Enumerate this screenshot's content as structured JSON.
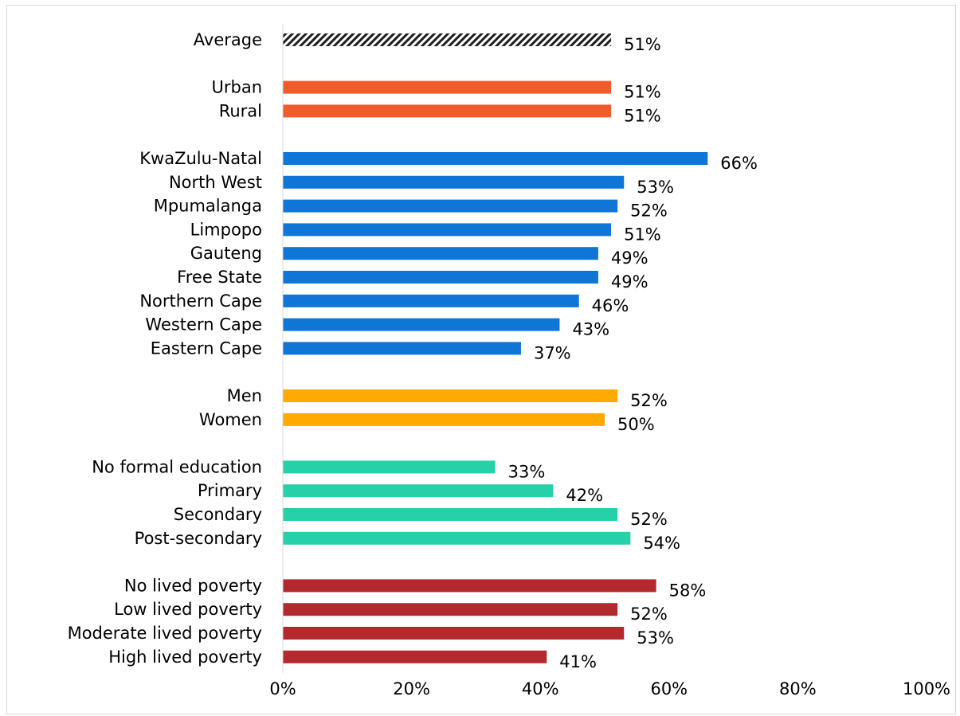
{
  "chart_data": {
    "type": "bar",
    "orientation": "horizontal",
    "xlim": [
      0,
      100
    ],
    "x_ticks": [
      "0%",
      "20%",
      "40%",
      "60%",
      "80%",
      "100%"
    ],
    "grid": false,
    "groups": [
      {
        "color": "#1f1f1f",
        "pattern": "diagonal-hatch",
        "bars": [
          {
            "label": "Average",
            "value": 51,
            "value_label": "51%"
          }
        ]
      },
      {
        "color": "#f15a2b",
        "bars": [
          {
            "label": "Urban",
            "value": 51,
            "value_label": "51%"
          },
          {
            "label": "Rural",
            "value": 51,
            "value_label": "51%"
          }
        ]
      },
      {
        "color": "#0f75d6",
        "bars": [
          {
            "label": "KwaZulu-Natal",
            "value": 66,
            "value_label": "66%"
          },
          {
            "label": "North West",
            "value": 53,
            "value_label": "53%"
          },
          {
            "label": "Mpumalanga",
            "value": 52,
            "value_label": "52%"
          },
          {
            "label": "Limpopo",
            "value": 51,
            "value_label": "51%"
          },
          {
            "label": "Gauteng",
            "value": 49,
            "value_label": "49%"
          },
          {
            "label": "Free State",
            "value": 49,
            "value_label": "49%"
          },
          {
            "label": "Northern Cape",
            "value": 46,
            "value_label": "46%"
          },
          {
            "label": "Western Cape",
            "value": 43,
            "value_label": "43%"
          },
          {
            "label": "Eastern Cape",
            "value": 37,
            "value_label": "37%"
          }
        ]
      },
      {
        "color": "#ffaa00",
        "bars": [
          {
            "label": "Men",
            "value": 52,
            "value_label": "52%"
          },
          {
            "label": "Women",
            "value": 50,
            "value_label": "50%"
          }
        ]
      },
      {
        "color": "#26d0a8",
        "bars": [
          {
            "label": "No formal education",
            "value": 33,
            "value_label": "33%"
          },
          {
            "label": "Primary",
            "value": 42,
            "value_label": "42%"
          },
          {
            "label": "Secondary",
            "value": 52,
            "value_label": "52%"
          },
          {
            "label": "Post-secondary",
            "value": 54,
            "value_label": "54%"
          }
        ]
      },
      {
        "color": "#b32a2e",
        "bars": [
          {
            "label": "No lived poverty",
            "value": 58,
            "value_label": "58%"
          },
          {
            "label": "Low lived poverty",
            "value": 52,
            "value_label": "52%"
          },
          {
            "label": "Moderate lived poverty",
            "value": 53,
            "value_label": "53%"
          },
          {
            "label": "High lived poverty",
            "value": 41,
            "value_label": "41%"
          }
        ]
      }
    ]
  }
}
